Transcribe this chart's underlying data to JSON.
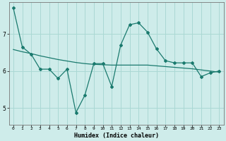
{
  "x": [
    0,
    1,
    2,
    3,
    4,
    5,
    6,
    7,
    8,
    9,
    10,
    11,
    12,
    13,
    14,
    15,
    16,
    17,
    18,
    19,
    20,
    21,
    22,
    23
  ],
  "y_main": [
    7.7,
    6.65,
    6.45,
    6.05,
    6.05,
    5.8,
    6.05,
    4.88,
    5.35,
    6.2,
    6.2,
    5.58,
    6.7,
    7.25,
    7.3,
    7.05,
    6.6,
    6.28,
    6.22,
    6.22,
    6.22,
    5.85,
    5.95,
    6.0
  ],
  "y_trend": [
    6.58,
    6.52,
    6.47,
    6.41,
    6.36,
    6.31,
    6.27,
    6.23,
    6.2,
    6.18,
    6.17,
    6.16,
    6.16,
    6.16,
    6.16,
    6.16,
    6.14,
    6.12,
    6.1,
    6.08,
    6.06,
    6.03,
    6.0,
    5.97
  ],
  "line_color": "#1a7a6e",
  "bg_color": "#ceecea",
  "grid_color": "#aad8d4",
  "xlabel": "Humidex (Indice chaleur)",
  "yticks": [
    5,
    6,
    7
  ],
  "xticks": [
    0,
    1,
    2,
    3,
    4,
    5,
    6,
    7,
    8,
    9,
    10,
    11,
    12,
    13,
    14,
    15,
    16,
    17,
    18,
    19,
    20,
    21,
    22,
    23
  ],
  "ylim": [
    4.55,
    7.85
  ],
  "xlim": [
    -0.5,
    23.5
  ]
}
